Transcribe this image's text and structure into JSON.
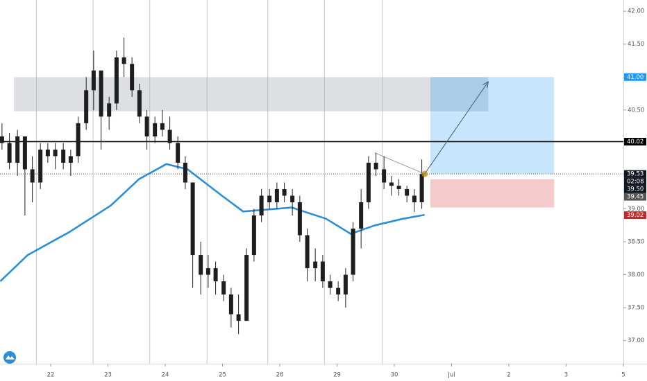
{
  "chart_data": {
    "type": "candlestick",
    "x": [
      -0.85,
      -0.72,
      -0.58,
      -0.45,
      -0.32,
      -0.18,
      -0.05,
      0.08,
      0.22,
      0.35,
      0.48,
      0.62,
      0.75,
      0.88,
      1.02,
      1.15,
      1.28,
      1.42,
      1.55,
      1.68,
      1.82,
      1.95,
      2.08,
      2.22,
      2.35,
      2.48,
      2.62,
      2.75,
      2.88,
      3.02,
      3.15,
      3.28,
      3.42,
      3.55,
      3.68,
      3.82,
      3.95,
      4.08,
      4.22,
      4.35,
      4.48,
      4.62,
      4.75,
      4.88,
      5.02,
      5.15,
      5.28,
      5.42,
      5.55,
      5.68,
      5.82,
      5.95,
      6.08,
      6.22,
      6.35,
      6.48
    ],
    "open": [
      40.1,
      40.0,
      39.7,
      40.1,
      39.6,
      39.4,
      39.9,
      39.8,
      39.9,
      39.7,
      39.8,
      40.3,
      40.8,
      41.1,
      40.4,
      40.6,
      41.3,
      41.2,
      40.8,
      40.4,
      40.1,
      40.3,
      40.2,
      40.0,
      39.7,
      39.4,
      38.3,
      38.0,
      38.1,
      37.9,
      37.7,
      37.4,
      37.3,
      38.3,
      38.9,
      39.2,
      39.1,
      39.3,
      39.2,
      39.1,
      38.6,
      38.1,
      38.2,
      37.9,
      37.8,
      37.7,
      38.0,
      38.7,
      39.1,
      39.7,
      39.6,
      39.4,
      39.35,
      39.3,
      39.2,
      39.1
    ],
    "high": [
      40.3,
      40.15,
      40.2,
      40.1,
      39.8,
      40.0,
      40.0,
      40.0,
      40.0,
      39.9,
      40.4,
      41.0,
      41.4,
      41.1,
      40.7,
      41.4,
      41.6,
      41.3,
      40.9,
      40.5,
      40.4,
      40.5,
      40.4,
      40.1,
      39.8,
      39.4,
      38.5,
      38.3,
      38.2,
      38.0,
      37.8,
      37.7,
      38.4,
      39.0,
      39.3,
      39.3,
      39.4,
      39.4,
      39.3,
      39.2,
      38.7,
      38.4,
      38.3,
      38.0,
      37.9,
      38.1,
      38.8,
      39.3,
      39.8,
      39.85,
      39.8,
      39.5,
      39.45,
      39.35,
      39.3,
      39.75
    ],
    "low": [
      39.9,
      39.6,
      39.5,
      38.9,
      39.1,
      39.3,
      39.7,
      39.6,
      39.6,
      39.5,
      39.7,
      40.2,
      40.5,
      39.9,
      40.2,
      40.5,
      41.0,
      40.7,
      40.3,
      39.9,
      40.0,
      40.1,
      39.9,
      39.6,
      39.3,
      37.8,
      37.7,
      37.8,
      37.7,
      37.6,
      37.2,
      37.1,
      37.3,
      38.2,
      38.8,
      39.0,
      39.0,
      39.1,
      38.9,
      38.5,
      37.9,
      37.9,
      37.8,
      37.7,
      37.6,
      37.5,
      37.9,
      38.4,
      39.0,
      39.5,
      39.3,
      39.2,
      39.2,
      39.1,
      38.95,
      39.0
    ],
    "close": [
      40.0,
      39.7,
      40.1,
      39.6,
      39.4,
      39.9,
      39.8,
      39.9,
      39.7,
      39.8,
      40.3,
      40.8,
      41.1,
      40.4,
      40.6,
      41.3,
      41.2,
      40.8,
      40.4,
      40.1,
      40.3,
      40.2,
      40.0,
      39.7,
      39.4,
      38.3,
      38.0,
      38.1,
      37.9,
      37.7,
      37.4,
      37.3,
      38.3,
      38.9,
      39.2,
      39.1,
      39.3,
      39.2,
      39.1,
      38.6,
      38.1,
      38.2,
      37.9,
      37.8,
      37.7,
      38.0,
      38.7,
      39.1,
      39.7,
      39.6,
      39.4,
      39.35,
      39.3,
      39.2,
      39.1,
      39.53
    ],
    "candle_color": "#1e1e1e",
    "ma": {
      "color": "#2a8fd8",
      "x": [
        -0.88,
        -0.4,
        0.33,
        1.05,
        1.54,
        2.02,
        2.39,
        2.99,
        3.36,
        4.21,
        4.81,
        5.24,
        5.66,
        6.15,
        6.53
      ],
      "values": [
        37.9,
        38.3,
        38.65,
        39.05,
        39.45,
        39.68,
        39.6,
        39.2,
        38.96,
        39.02,
        38.85,
        38.62,
        38.75,
        38.85,
        38.91
      ]
    },
    "zones": [
      {
        "x": [
          -0.64,
          7.64
        ],
        "y": [
          40.48,
          41.0
        ],
        "color": "rgba(170,174,186,0.4)"
      },
      {
        "x": [
          6.63,
          8.79
        ],
        "y": [
          39.53,
          41.0
        ],
        "color": "rgba(33,150,243,0.25)"
      },
      {
        "x": [
          6.63,
          8.79
        ],
        "y": [
          39.02,
          39.45
        ],
        "color": "rgba(220,80,80,0.3)"
      }
    ],
    "arrow": {
      "x": [
        6.53,
        7.64
      ],
      "y": [
        39.53,
        40.93
      ],
      "color": "#3d5a80"
    },
    "trendline": {
      "x": [
        5.66,
        6.53
      ],
      "y": [
        39.85,
        39.53
      ],
      "color": "#999"
    },
    "hline": {
      "value": 40.02,
      "color": "#000"
    },
    "last_price_line": {
      "value": 39.53,
      "color": "#555"
    },
    "session_lines": [
      -0.25,
      0.74,
      1.73,
      2.73,
      3.79,
      4.78,
      5.79
    ],
    "price_labels": [
      {
        "value": 41.0,
        "label": "41.00",
        "color": "#2196f3"
      },
      {
        "value": 40.02,
        "label": "40.02",
        "color": "#000"
      },
      {
        "value": 39.53,
        "label": "39.53",
        "color": "#131722"
      },
      {
        "value": 39.5,
        "label": "39.50",
        "color": "#131722"
      },
      {
        "value": 39.45,
        "label": "39.45",
        "color": "#555"
      },
      {
        "value": 39.02,
        "label": "39.02",
        "color": "#c62828"
      }
    ],
    "countdown": "02:08",
    "xlim": [
      -0.885,
      10
    ],
    "ylim": [
      36.65,
      42.17
    ],
    "xticks": [
      {
        "value": 0,
        "label": "22"
      },
      {
        "value": 1,
        "label": "23"
      },
      {
        "value": 2,
        "label": "24"
      },
      {
        "value": 3,
        "label": "25"
      },
      {
        "value": 4,
        "label": "26"
      },
      {
        "value": 5,
        "label": "29"
      },
      {
        "value": 6,
        "label": "30"
      },
      {
        "value": 7,
        "label": "Jul"
      },
      {
        "value": 8,
        "label": "2"
      },
      {
        "value": 9,
        "label": "3"
      },
      {
        "value": 10,
        "label": "5"
      }
    ],
    "yticks": [
      {
        "value": 37,
        "label": "37.00"
      },
      {
        "value": 37.5,
        "label": "37.50"
      },
      {
        "value": 38,
        "label": "38.00"
      },
      {
        "value": 38.5,
        "label": "38.50"
      },
      {
        "value": 39,
        "label": "39.00"
      },
      {
        "value": 39.5,
        "label": "39.50"
      },
      {
        "value": 40,
        "label": "40.00"
      },
      {
        "value": 40.5,
        "label": "40.50"
      },
      {
        "value": 41,
        "label": "41.00"
      },
      {
        "value": 41.5,
        "label": "41.50"
      },
      {
        "value": 42,
        "label": "42.00"
      }
    ]
  }
}
